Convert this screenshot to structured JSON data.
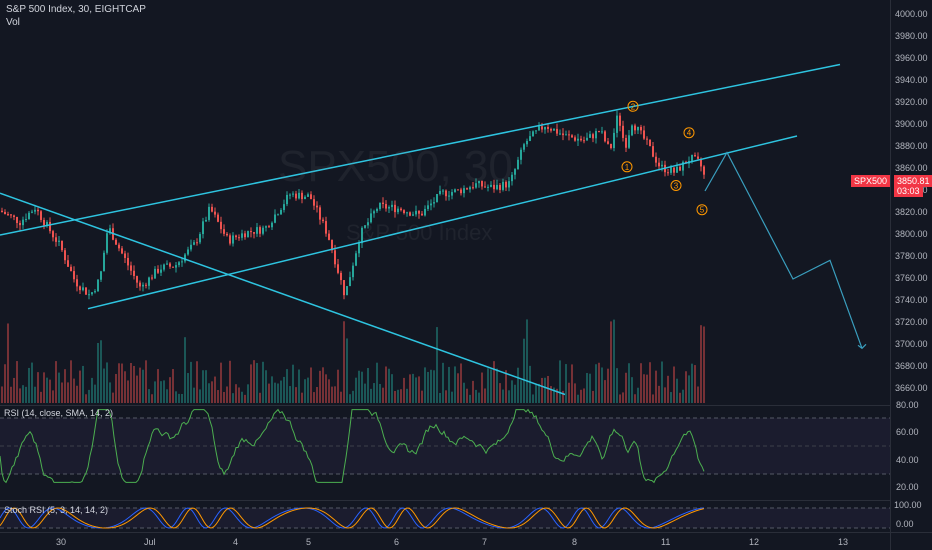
{
  "header": {
    "symbol_line": "S&P 500 Index, 30, EIGHTCAP",
    "volume_label": "Vol"
  },
  "watermark": {
    "ticker": "SPX500, 30",
    "name": "S&P 500 Index"
  },
  "price_axis": {
    "ticks": [
      "4000.00",
      "3980.00",
      "3960.00",
      "3940.00",
      "3920.00",
      "3900.00",
      "3880.00",
      "3860.00",
      "3840.00",
      "3820.00",
      "3800.00",
      "3780.00",
      "3760.00",
      "3740.00",
      "3720.00",
      "3700.00",
      "3680.00",
      "3660.00"
    ],
    "last_symbol": "SPX500",
    "last_price": "3850.81",
    "countdown": "03:03"
  },
  "rsi": {
    "label": "RSI (14, close, SMA, 14, 2)",
    "ticks": [
      "80.00",
      "60.00",
      "40.00",
      "20.00"
    ]
  },
  "stoch": {
    "label": "Stoch RSI (5, 3, 14, 14, 2)",
    "ticks": [
      "100.00",
      "0.00"
    ]
  },
  "time_axis": {
    "ticks": [
      "30",
      "Jul",
      "4",
      "5",
      "6",
      "7",
      "8",
      "11",
      "12",
      "13"
    ]
  },
  "wave_labels": [
    "1",
    "2",
    "3",
    "4",
    "5"
  ],
  "colors": {
    "background": "#131722",
    "up": "#26a69a",
    "down": "#ef5350",
    "channel_line": "#2ec4e0",
    "projection_line": "#3a9fbf",
    "rsi_line": "#4caf50",
    "wave_label": "#ff9800",
    "price_badge": "#f23645"
  },
  "chart_data": {
    "type": "candlestick",
    "title": "S&P 500 Index, 30, EIGHTCAP",
    "ylim": [
      3640,
      4000
    ],
    "x_categories": [
      "30",
      "Jul",
      "4",
      "5",
      "6",
      "7",
      "8",
      "11",
      "12",
      "13"
    ],
    "anchors": [
      {
        "x": 0,
        "close": 3822
      },
      {
        "x": 20,
        "close": 3812
      },
      {
        "x": 35,
        "close": 3825
      },
      {
        "x": 60,
        "close": 3790
      },
      {
        "x": 75,
        "close": 3758
      },
      {
        "x": 90,
        "close": 3745
      },
      {
        "x": 100,
        "close": 3760
      },
      {
        "x": 108,
        "close": 3808
      },
      {
        "x": 122,
        "close": 3783
      },
      {
        "x": 140,
        "close": 3752
      },
      {
        "x": 160,
        "close": 3770
      },
      {
        "x": 175,
        "close": 3772
      },
      {
        "x": 195,
        "close": 3792
      },
      {
        "x": 210,
        "close": 3824
      },
      {
        "x": 228,
        "close": 3795
      },
      {
        "x": 245,
        "close": 3802
      },
      {
        "x": 265,
        "close": 3806
      },
      {
        "x": 290,
        "close": 3837
      },
      {
        "x": 310,
        "close": 3835
      },
      {
        "x": 328,
        "close": 3800
      },
      {
        "x": 345,
        "close": 3745
      },
      {
        "x": 360,
        "close": 3800
      },
      {
        "x": 378,
        "close": 3826
      },
      {
        "x": 400,
        "close": 3824
      },
      {
        "x": 420,
        "close": 3818
      },
      {
        "x": 442,
        "close": 3838
      },
      {
        "x": 458,
        "close": 3840
      },
      {
        "x": 475,
        "close": 3846
      },
      {
        "x": 492,
        "close": 3843
      },
      {
        "x": 510,
        "close": 3847
      },
      {
        "x": 525,
        "close": 3884
      },
      {
        "x": 545,
        "close": 3900
      },
      {
        "x": 565,
        "close": 3890
      },
      {
        "x": 585,
        "close": 3886
      },
      {
        "x": 600,
        "close": 3895
      },
      {
        "x": 610,
        "close": 3876
      },
      {
        "x": 618,
        "close": 3910
      },
      {
        "x": 625,
        "close": 3880
      },
      {
        "x": 632,
        "close": 3903
      },
      {
        "x": 645,
        "close": 3886
      },
      {
        "x": 660,
        "close": 3862
      },
      {
        "x": 675,
        "close": 3857
      },
      {
        "x": 690,
        "close": 3870
      },
      {
        "x": 700,
        "close": 3865
      },
      {
        "x": 705,
        "close": 3851
      }
    ],
    "channel_upper": [
      {
        "x": 0,
        "y": 3800
      },
      {
        "x": 840,
        "y": 3955
      }
    ],
    "channel_lower": [
      {
        "x": 88,
        "y": 3733
      },
      {
        "x": 797,
        "y": 3890
      }
    ],
    "descending_line": [
      {
        "x": 0,
        "y": 3838
      },
      {
        "x": 565,
        "y": 3655
      }
    ],
    "projection": [
      {
        "x": 705,
        "y": 3840
      },
      {
        "x": 727,
        "y": 3875
      },
      {
        "x": 793,
        "y": 3760
      },
      {
        "x": 830,
        "y": 3777
      },
      {
        "x": 862,
        "y": 3697
      }
    ],
    "waves": [
      {
        "label": "1",
        "x": 627,
        "y": 3862
      },
      {
        "label": "2",
        "x": 633,
        "y": 3917
      },
      {
        "label": "3",
        "x": 676,
        "y": 3845
      },
      {
        "label": "4",
        "x": 689,
        "y": 3893
      },
      {
        "label": "5",
        "x": 702,
        "y": 3823
      }
    ]
  }
}
